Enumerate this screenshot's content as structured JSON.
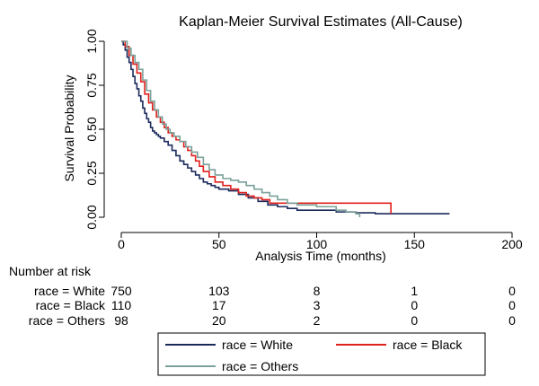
{
  "chart_data": {
    "type": "line",
    "title": "Kaplan-Meier Survival Estimates (All-Cause)",
    "xlabel": "Analysis Time (months)",
    "ylabel": "Survival Probability",
    "xlim": [
      0,
      200
    ],
    "ylim": [
      0,
      1
    ],
    "x_ticks": [
      0,
      50,
      100,
      150,
      200
    ],
    "y_ticks": [
      0,
      0.25,
      0.5,
      0.75,
      1
    ],
    "y_tick_labels": [
      "0.00",
      "0.25",
      "0.50",
      "0.75",
      "1.00"
    ],
    "grid": false,
    "step": true,
    "series": [
      {
        "name": "race = White",
        "color": "#1b2a5c",
        "points": [
          [
            0,
            1.0
          ],
          [
            1,
            0.98
          ],
          [
            2,
            0.95
          ],
          [
            3,
            0.91
          ],
          [
            4,
            0.88
          ],
          [
            5,
            0.84
          ],
          [
            6,
            0.8
          ],
          [
            7,
            0.76
          ],
          [
            8,
            0.73
          ],
          [
            9,
            0.69
          ],
          [
            10,
            0.66
          ],
          [
            11,
            0.62
          ],
          [
            12,
            0.59
          ],
          [
            13,
            0.56
          ],
          [
            14,
            0.54
          ],
          [
            15,
            0.51
          ],
          [
            16,
            0.49
          ],
          [
            17,
            0.48
          ],
          [
            18,
            0.47
          ],
          [
            19,
            0.46
          ],
          [
            20,
            0.45
          ],
          [
            22,
            0.43
          ],
          [
            24,
            0.41
          ],
          [
            26,
            0.38
          ],
          [
            28,
            0.35
          ],
          [
            30,
            0.32
          ],
          [
            32,
            0.3
          ],
          [
            34,
            0.28
          ],
          [
            36,
            0.26
          ],
          [
            38,
            0.24
          ],
          [
            40,
            0.22
          ],
          [
            42,
            0.2
          ],
          [
            44,
            0.19
          ],
          [
            46,
            0.18
          ],
          [
            48,
            0.17
          ],
          [
            50,
            0.16
          ],
          [
            55,
            0.15
          ],
          [
            60,
            0.13
          ],
          [
            65,
            0.11
          ],
          [
            70,
            0.09
          ],
          [
            75,
            0.07
          ],
          [
            80,
            0.06
          ],
          [
            85,
            0.05
          ],
          [
            90,
            0.04
          ],
          [
            100,
            0.04
          ],
          [
            110,
            0.03
          ],
          [
            120,
            0.025
          ],
          [
            130,
            0.02
          ],
          [
            140,
            0.02
          ],
          [
            150,
            0.02
          ],
          [
            168,
            0.02
          ]
        ]
      },
      {
        "name": "race = Black",
        "color": "#e0201b",
        "points": [
          [
            0,
            1.0
          ],
          [
            2,
            0.97
          ],
          [
            4,
            0.92
          ],
          [
            6,
            0.87
          ],
          [
            8,
            0.82
          ],
          [
            10,
            0.77
          ],
          [
            12,
            0.7
          ],
          [
            14,
            0.65
          ],
          [
            16,
            0.61
          ],
          [
            18,
            0.57
          ],
          [
            20,
            0.54
          ],
          [
            22,
            0.51
          ],
          [
            24,
            0.48
          ],
          [
            26,
            0.46
          ],
          [
            28,
            0.44
          ],
          [
            30,
            0.43
          ],
          [
            32,
            0.4
          ],
          [
            34,
            0.38
          ],
          [
            36,
            0.35
          ],
          [
            38,
            0.32
          ],
          [
            40,
            0.29
          ],
          [
            42,
            0.26
          ],
          [
            45,
            0.23
          ],
          [
            48,
            0.2
          ],
          [
            52,
            0.18
          ],
          [
            56,
            0.16
          ],
          [
            60,
            0.14
          ],
          [
            64,
            0.12
          ],
          [
            68,
            0.11
          ],
          [
            72,
            0.1
          ],
          [
            76,
            0.08
          ],
          [
            138,
            0.08
          ],
          [
            138,
            0.02
          ]
        ]
      },
      {
        "name": "race = Others",
        "color": "#7aa19a",
        "points": [
          [
            0,
            1.0
          ],
          [
            3,
            0.96
          ],
          [
            5,
            0.92
          ],
          [
            7,
            0.88
          ],
          [
            9,
            0.84
          ],
          [
            11,
            0.78
          ],
          [
            13,
            0.72
          ],
          [
            15,
            0.66
          ],
          [
            17,
            0.61
          ],
          [
            19,
            0.57
          ],
          [
            21,
            0.53
          ],
          [
            23,
            0.5
          ],
          [
            25,
            0.48
          ],
          [
            27,
            0.46
          ],
          [
            30,
            0.43
          ],
          [
            33,
            0.4
          ],
          [
            36,
            0.37
          ],
          [
            39,
            0.34
          ],
          [
            42,
            0.3
          ],
          [
            45,
            0.27
          ],
          [
            48,
            0.24
          ],
          [
            52,
            0.22
          ],
          [
            56,
            0.21
          ],
          [
            60,
            0.2
          ],
          [
            64,
            0.18
          ],
          [
            68,
            0.16
          ],
          [
            72,
            0.14
          ],
          [
            76,
            0.12
          ],
          [
            80,
            0.1
          ],
          [
            85,
            0.08
          ],
          [
            90,
            0.07
          ],
          [
            100,
            0.06
          ],
          [
            110,
            0.04
          ],
          [
            115,
            0.03
          ],
          [
            120,
            0.02
          ],
          [
            122,
            0.0
          ]
        ]
      }
    ],
    "risk_table": {
      "title": "Number at risk",
      "at_times": [
        0,
        50,
        100,
        150,
        200
      ],
      "rows": [
        {
          "label": "race = White",
          "counts": [
            "750",
            "103",
            "8",
            "1",
            "0"
          ]
        },
        {
          "label": "race = Black",
          "counts": [
            "110",
            "17",
            "3",
            "0",
            "0"
          ]
        },
        {
          "label": "race = Others",
          "counts": [
            "98",
            "20",
            "2",
            "0",
            "0"
          ]
        }
      ]
    },
    "legend": {
      "placement": "bottom",
      "entries": [
        {
          "name": "race = White",
          "color": "#1b2a5c"
        },
        {
          "name": "race = Black",
          "color": "#e0201b"
        },
        {
          "name": "race = Others",
          "color": "#7aa19a"
        }
      ]
    }
  }
}
